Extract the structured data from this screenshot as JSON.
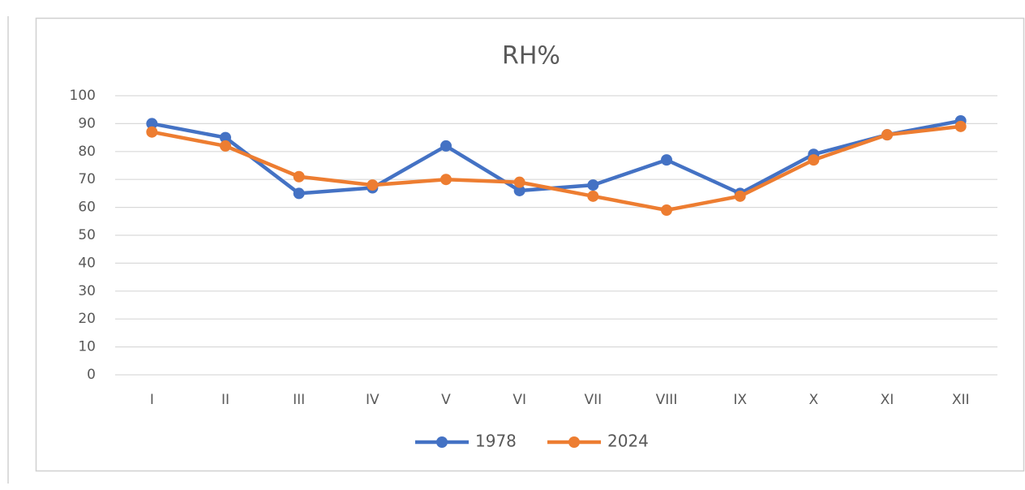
{
  "chart_data": {
    "type": "line",
    "title": "RH%",
    "categories": [
      "I",
      "II",
      "III",
      "IV",
      "V",
      "VI",
      "VII",
      "VIII",
      "IX",
      "X",
      "XI",
      "XII"
    ],
    "series": [
      {
        "name": "1978",
        "color": "#4472c4",
        "values": [
          90,
          85,
          65,
          67,
          82,
          66,
          68,
          77,
          65,
          79,
          86,
          91
        ]
      },
      {
        "name": "2024",
        "color": "#ed7d31",
        "values": [
          87,
          82,
          71,
          68,
          70,
          69,
          64,
          59,
          64,
          77,
          86,
          89
        ]
      }
    ],
    "ylim": [
      0,
      100
    ],
    "yticks": [
      0,
      10,
      20,
      30,
      40,
      50,
      60,
      70,
      80,
      90,
      100
    ],
    "grid": true,
    "legend": "bottom"
  }
}
